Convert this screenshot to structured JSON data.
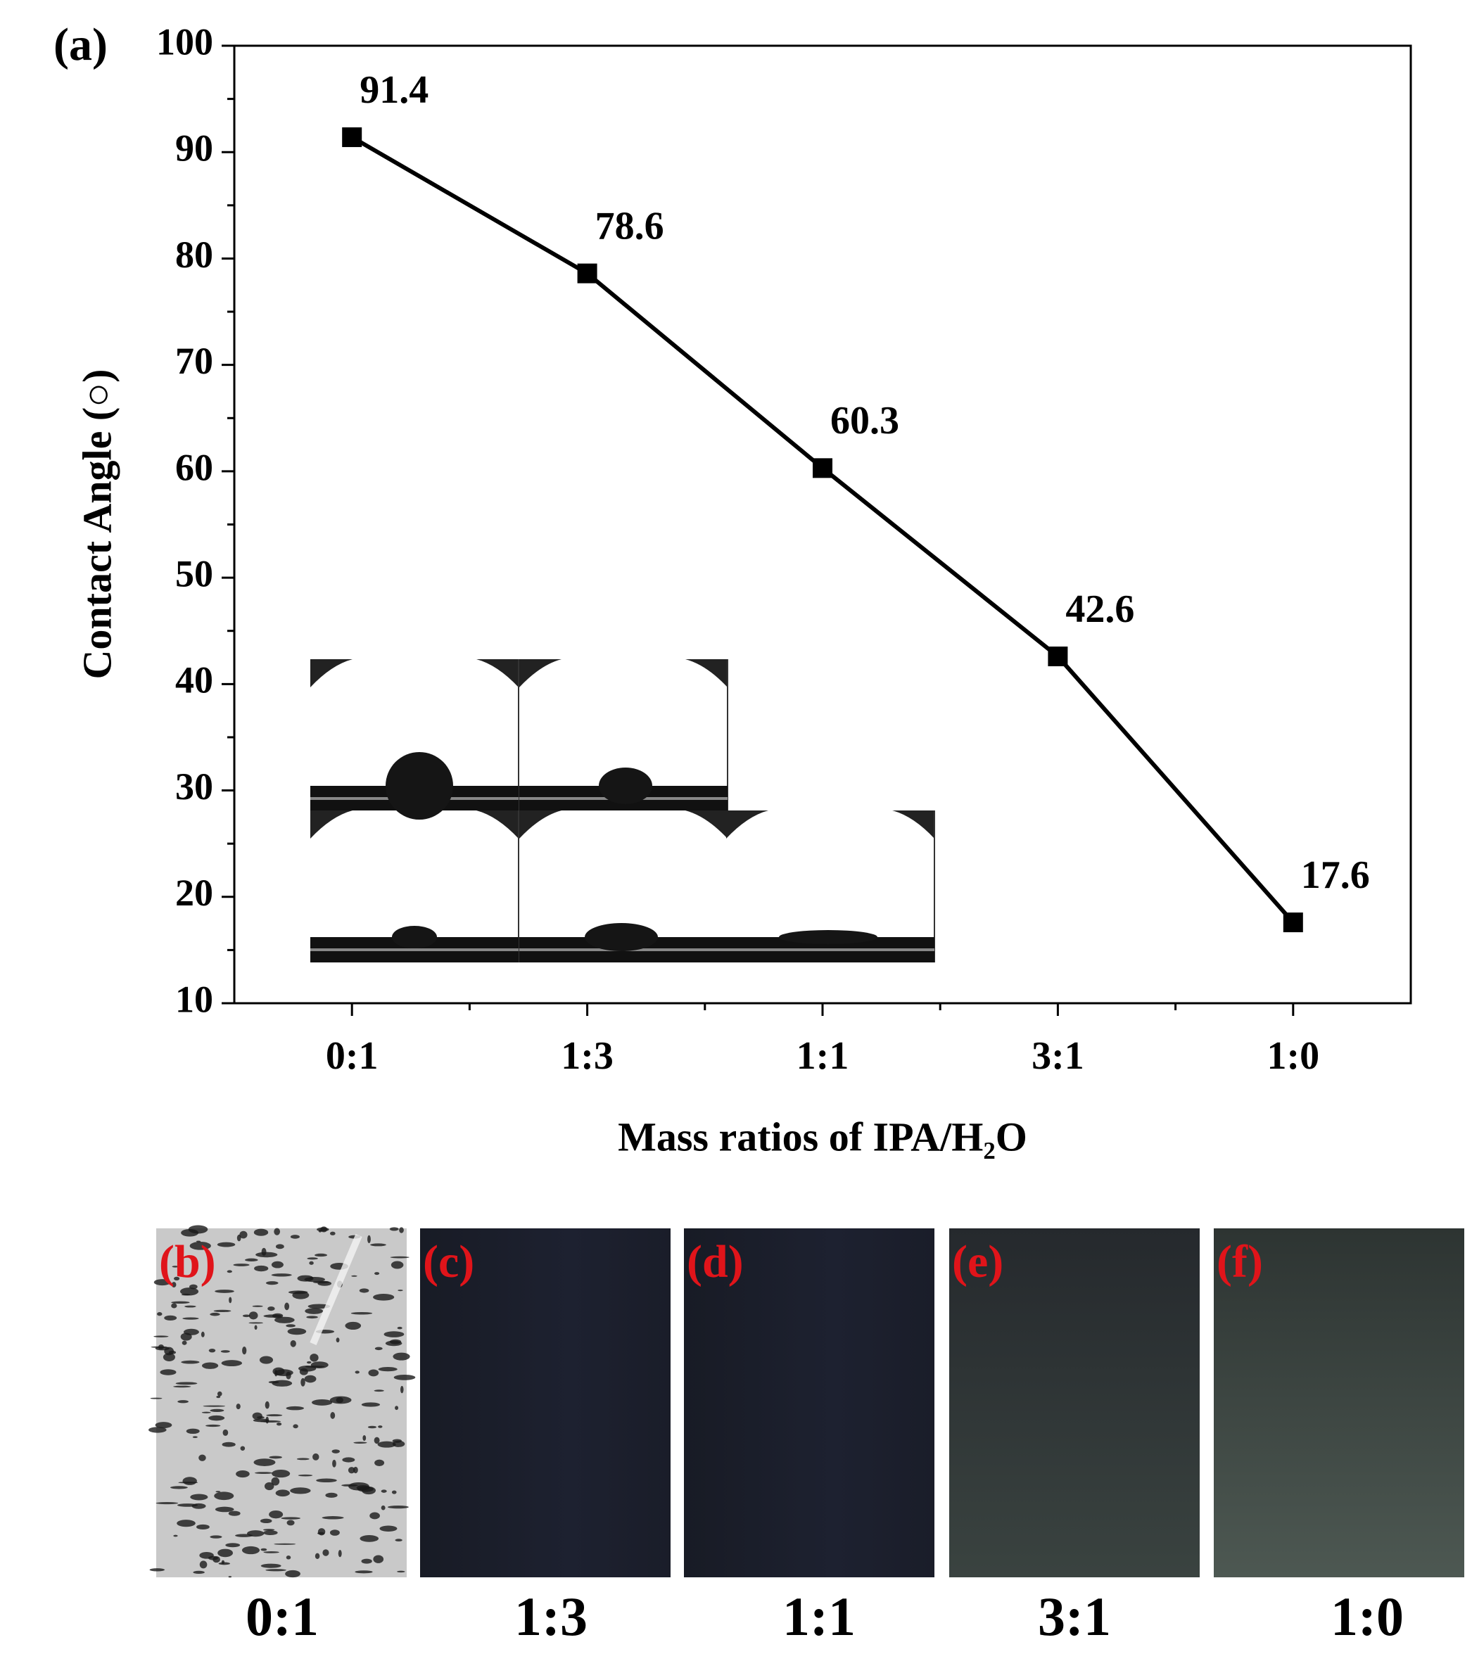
{
  "chart_data": {
    "type": "line",
    "panel_label": "(a)",
    "x_label": "Mass ratios of IPA/H₂O",
    "y_label": "Contact Angle (○)",
    "categories": [
      "0:1",
      "1:3",
      "1:1",
      "3:1",
      "1:0"
    ],
    "series": [
      {
        "color": "#000000",
        "values": [
          91.4,
          78.6,
          60.3,
          42.6,
          17.6
        ]
      }
    ],
    "ylim": [
      10,
      100
    ],
    "yticks": [
      10,
      20,
      30,
      40,
      50,
      60,
      70,
      80,
      90,
      100
    ]
  },
  "photos": [
    {
      "tag": "(b)",
      "caption": "0:1"
    },
    {
      "tag": "(c)",
      "caption": "1:3"
    },
    {
      "tag": "(d)",
      "caption": "1:1"
    },
    {
      "tag": "(e)",
      "caption": "3:1"
    },
    {
      "tag": "(f)",
      "caption": "1:0"
    }
  ]
}
